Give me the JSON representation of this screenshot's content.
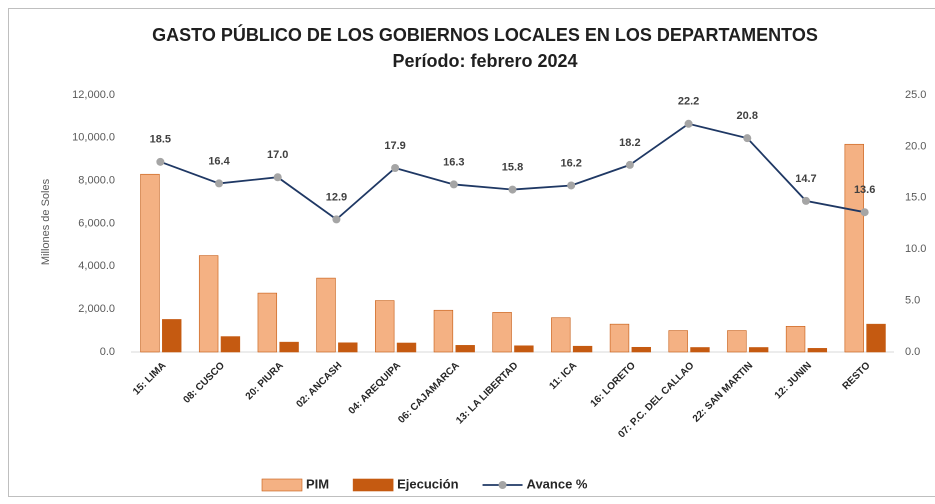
{
  "chart_data": {
    "type": "bar_line",
    "title": "GASTO PÚBLICO DE LOS GOBIERNOS LOCALES EN LOS DEPARTAMENTOS",
    "subtitle": "Período: febrero 2024",
    "y_label": "Millones de Soles",
    "categories": [
      "15: LIMA",
      "08: CUSCO",
      "20: PIURA",
      "02: ANCASH",
      "04: AREQUIPA",
      "06: CAJAMARCA",
      "13: LA LIBERTAD",
      "11: ICA",
      "16: LORETO",
      "07: P.C. DEL CALLAO",
      "22: SAN MARTIN",
      "12: JUNIN",
      "RESTO"
    ],
    "series": [
      {
        "name": "PIM",
        "type": "bar",
        "color": "#f4b183",
        "values": [
          8300,
          4500,
          2750,
          3450,
          2400,
          1950,
          1850,
          1600,
          1300,
          1000,
          1000,
          1200,
          9700
        ]
      },
      {
        "name": "Ejecución",
        "type": "bar",
        "color": "#c55a11",
        "values": [
          1520,
          720,
          460,
          430,
          420,
          310,
          290,
          270,
          220,
          210,
          210,
          170,
          1300
        ]
      },
      {
        "name": "Avance %",
        "type": "line",
        "axis": "y2",
        "color": "#1f3864",
        "marker_color": "#a5a5a5",
        "values": [
          18.5,
          16.4,
          17.0,
          12.9,
          17.9,
          16.3,
          15.8,
          16.2,
          18.2,
          22.2,
          20.8,
          14.7,
          13.6
        ],
        "value_labels": [
          "18.5",
          "16.4",
          "17.0",
          "12.9",
          "17.9",
          "16.3",
          "15.8",
          "16.2",
          "18.2",
          "22.2",
          "20.8",
          "14.7",
          "13.6"
        ]
      }
    ],
    "ylim": [
      0,
      12000
    ],
    "yticks": [
      {
        "value": 0,
        "label": "0.0"
      },
      {
        "value": 2000,
        "label": "2,000.0"
      },
      {
        "value": 4000,
        "label": "4,000.0"
      },
      {
        "value": 6000,
        "label": "6,000.0"
      },
      {
        "value": 8000,
        "label": "8,000.0"
      },
      {
        "value": 10000,
        "label": "10,000.0"
      },
      {
        "value": 12000,
        "label": "12,000.0"
      }
    ],
    "y2lim": [
      0,
      25
    ],
    "y2ticks": [
      {
        "value": 0,
        "label": "0.0"
      },
      {
        "value": 5,
        "label": "5.0"
      },
      {
        "value": 10,
        "label": "10.0"
      },
      {
        "value": 15,
        "label": "15.0"
      },
      {
        "value": 20,
        "label": "20.0"
      },
      {
        "value": 25,
        "label": "25.0"
      }
    ],
    "legend": "bottom"
  }
}
